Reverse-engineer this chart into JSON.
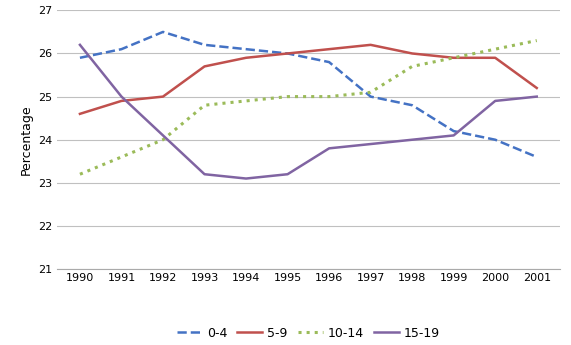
{
  "years": [
    1990,
    1991,
    1992,
    1993,
    1994,
    1995,
    1996,
    1997,
    1998,
    1999,
    2000,
    2001
  ],
  "age_0_4": [
    25.9,
    26.1,
    26.5,
    26.2,
    26.1,
    26.0,
    25.8,
    25.0,
    24.8,
    24.2,
    24.0,
    23.6
  ],
  "age_5_9": [
    24.6,
    24.9,
    25.0,
    25.7,
    25.9,
    26.0,
    26.1,
    26.2,
    26.0,
    25.9,
    25.9,
    25.2
  ],
  "age_10_14": [
    23.2,
    23.6,
    24.0,
    24.8,
    24.9,
    25.0,
    25.0,
    25.1,
    25.7,
    25.9,
    26.1,
    26.3
  ],
  "age_15_19": [
    26.2,
    25.0,
    24.1,
    23.2,
    23.1,
    23.2,
    23.8,
    23.9,
    24.0,
    24.1,
    24.9,
    25.0
  ],
  "colors": {
    "0-4": "#4472C4",
    "5-9": "#C0504D",
    "10-14": "#9BBB59",
    "15-19": "#8064A2"
  },
  "ylabel": "Percentage",
  "ylim": [
    21,
    27
  ],
  "yticks": [
    21,
    22,
    23,
    24,
    25,
    26,
    27
  ],
  "background_color": "#ffffff",
  "grid_color": "#c0c0c0"
}
